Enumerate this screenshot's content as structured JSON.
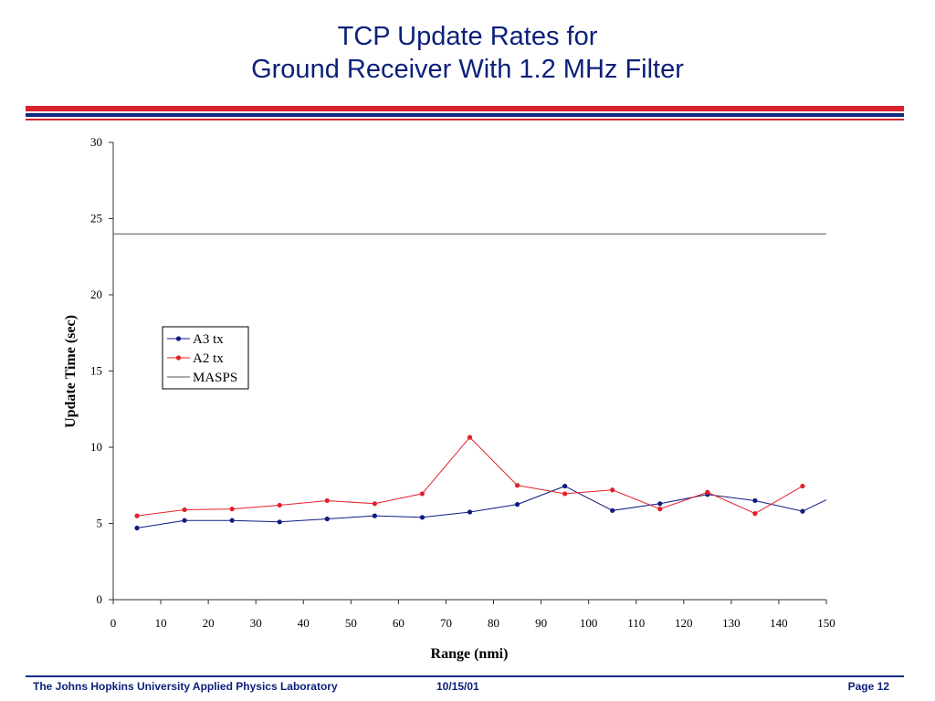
{
  "slide": {
    "title_line1": "TCP Update Rates for",
    "title_line2": "Ground Receiver With 1.2 MHz Filter"
  },
  "footer": {
    "org": "The Johns Hopkins University Applied Physics Laboratory",
    "date": "10/15/01",
    "page": "Page 12"
  },
  "colors": {
    "title": "#0b1f7a",
    "band_red": "#d9232e",
    "band_blue": "#102a80",
    "a3": "#0d1b80",
    "a2": "#e3202a",
    "masps": "#555555"
  },
  "chart_data": {
    "type": "line",
    "xlabel": "Range (nmi)",
    "ylabel": "Update Time (sec)",
    "xlim": [
      0,
      150
    ],
    "ylim": [
      0,
      30
    ],
    "xticks": [
      0,
      10,
      20,
      30,
      40,
      50,
      60,
      70,
      80,
      90,
      100,
      110,
      120,
      130,
      140,
      150
    ],
    "yticks": [
      0,
      5,
      10,
      15,
      20,
      25,
      30
    ],
    "grid": false,
    "legend_position": "left-middle",
    "series": [
      {
        "name": "A3 tx",
        "color": "#0d1b80",
        "marker": true,
        "x": [
          5,
          15,
          25,
          35,
          45,
          55,
          65,
          75,
          85,
          95,
          105,
          115,
          125,
          135,
          145,
          150
        ],
        "y": [
          4.7,
          5.2,
          5.2,
          5.1,
          5.3,
          5.5,
          5.4,
          5.75,
          6.25,
          7.45,
          5.85,
          6.3,
          6.9,
          6.5,
          5.8,
          6.55
        ],
        "marker_mask": [
          true,
          true,
          true,
          true,
          true,
          true,
          true,
          true,
          true,
          true,
          true,
          true,
          true,
          true,
          true,
          false
        ]
      },
      {
        "name": "A2 tx",
        "color": "#e3202a",
        "marker": true,
        "x": [
          5,
          15,
          25,
          35,
          45,
          55,
          65,
          75,
          85,
          95,
          105,
          115,
          125,
          135,
          145
        ],
        "y": [
          5.5,
          5.9,
          5.95,
          6.2,
          6.5,
          6.3,
          6.95,
          10.65,
          7.5,
          6.95,
          7.2,
          5.95,
          7.05,
          5.65,
          7.45
        ]
      },
      {
        "name": "MASPS",
        "color": "#555555",
        "marker": false,
        "x": [
          0,
          150
        ],
        "y": [
          24,
          24
        ]
      }
    ]
  }
}
